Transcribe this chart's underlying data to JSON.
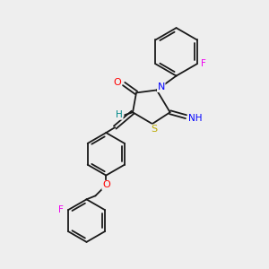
{
  "background_color": "#eeeeee",
  "bond_color": "#1a1a1a",
  "atom_colors": {
    "O": "#ff0000",
    "N": "#0000ff",
    "S": "#bbaa00",
    "F": "#ee00ee",
    "H": "#008888",
    "C": "#1a1a1a"
  },
  "figsize": [
    3.0,
    3.0
  ],
  "dpi": 100
}
